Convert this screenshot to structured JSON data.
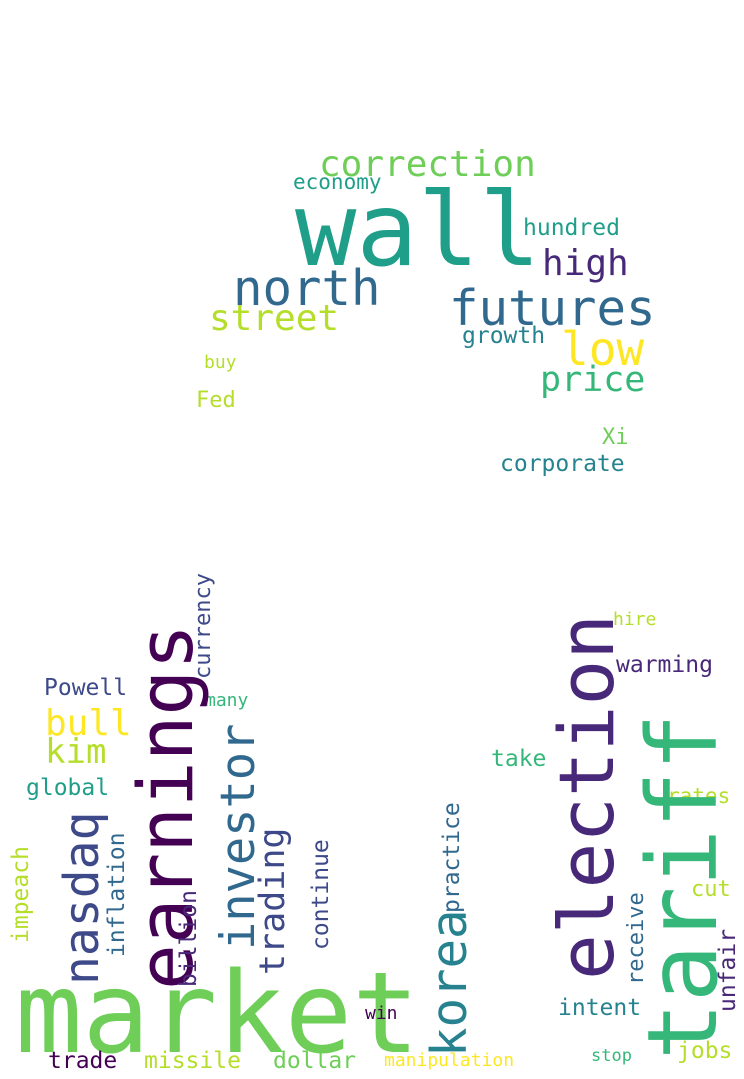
{
  "words": {
    "correction": "correction",
    "economy": "economy",
    "wall": "wall",
    "hundred": "hundred",
    "high": "high",
    "north": "north",
    "futures": "futures",
    "street": "street",
    "growth": "growth",
    "low": "low",
    "buy": "buy",
    "price": "price",
    "fed": "Fed",
    "xi": "Xi",
    "corporate": "corporate",
    "hire": "hire",
    "currency": "currency",
    "earnings": "earnings",
    "warming": "warming",
    "powell": "Powell",
    "many": "many",
    "election": "election",
    "tariff": "tariff",
    "bull": "bull",
    "kim": "kim",
    "investor": "investor",
    "take": "take",
    "global": "global",
    "rates": "rates",
    "practice": "practice",
    "nasdaq": "nasdaq",
    "inflation": "inflation",
    "trading": "trading",
    "impeach": "impeach",
    "continue": "continue",
    "receive": "receive",
    "cut": "cut",
    "billion": "billion",
    "korea": "korea",
    "unfair": "unfair",
    "market": "market",
    "intent": "intent",
    "win": "win",
    "jobs": "jobs",
    "trade": "trade",
    "missile": "missile",
    "dollar": "dollar",
    "manipulation": "manipulation",
    "stop": "stop"
  },
  "colors": {
    "dark_purple": "#440154",
    "purple": "#482878",
    "indigo": "#3e4989",
    "blue": "#31688e",
    "teal_blue": "#26828e",
    "teal": "#1f9e89",
    "green_teal": "#35b779",
    "green": "#6ece58",
    "lime": "#b5de2b",
    "yellow": "#fde725"
  }
}
